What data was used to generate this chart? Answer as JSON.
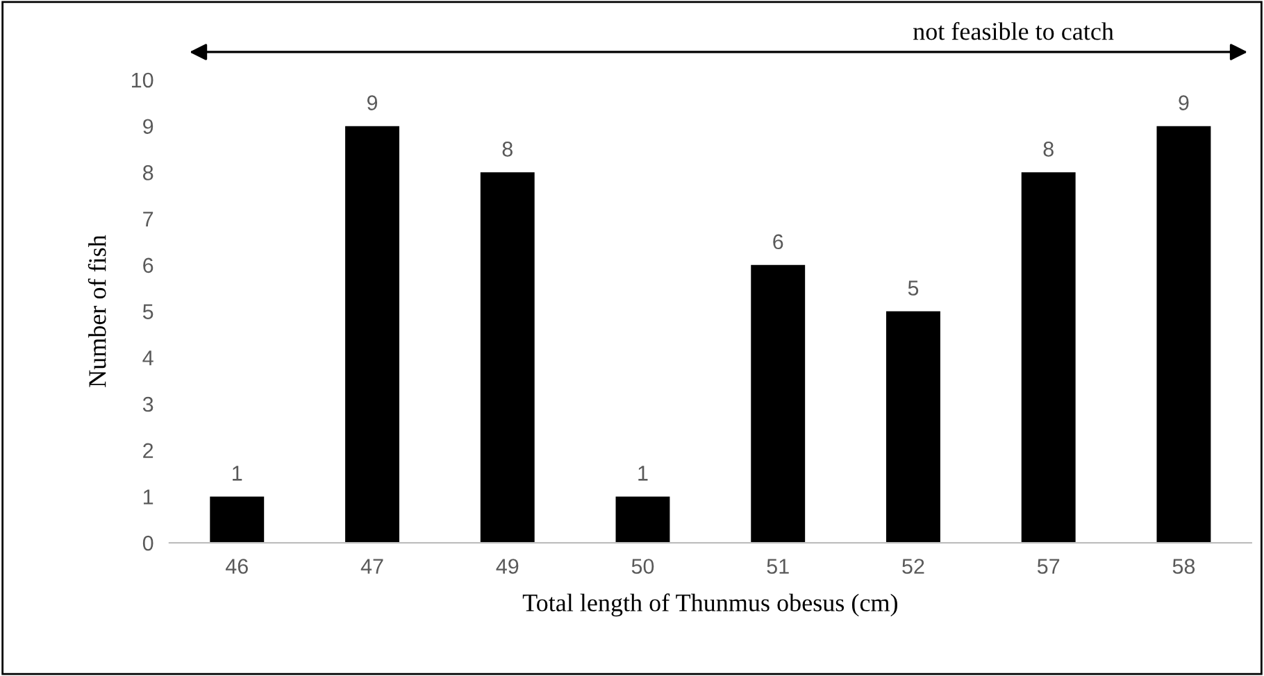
{
  "chart_data": {
    "type": "bar",
    "xlabel": "Total length of Thunmus obesus (cm)",
    "ylabel": "Number of fish",
    "categories": [
      "46",
      "47",
      "49",
      "50",
      "51",
      "52",
      "57",
      "58"
    ],
    "values": [
      1,
      9,
      8,
      1,
      6,
      5,
      8,
      9
    ],
    "color": "#000000",
    "ylim": [
      0,
      10
    ],
    "yticks": [
      0,
      1,
      2,
      3,
      4,
      5,
      6,
      7,
      8,
      9,
      10
    ],
    "grid": false,
    "data_labels": true,
    "annotations": [
      "not feasible to catch"
    ]
  }
}
